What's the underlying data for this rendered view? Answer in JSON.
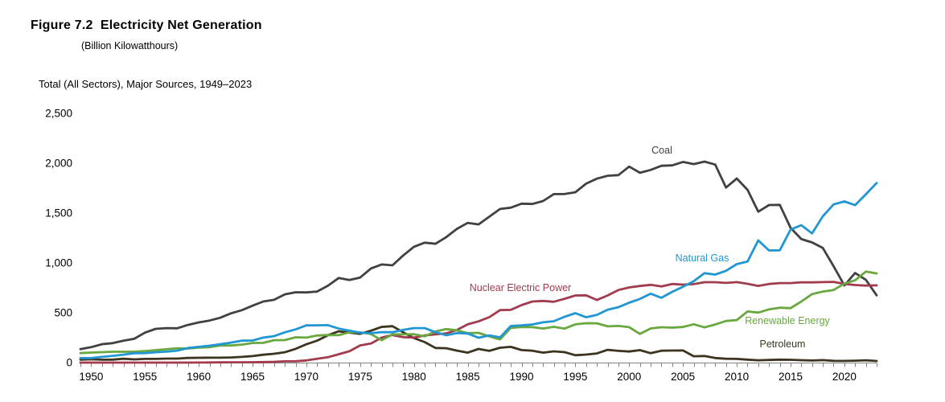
{
  "figure": {
    "title": "Figure 7.2  Electricity Net Generation",
    "units": "(Billion Kilowatthours)",
    "subtitle": "Total (All Sectors), Major Sources, 1949–2023"
  },
  "axis": {
    "y_ticks": [
      {
        "label": "0",
        "value": 0
      },
      {
        "label": "500",
        "value": 500
      },
      {
        "label": "1,000",
        "value": 1000
      },
      {
        "label": "1,500",
        "value": 1500
      },
      {
        "label": "2,000",
        "value": 2000
      },
      {
        "label": "2,500",
        "value": 2500
      }
    ],
    "x_tick_years": [
      1950,
      1955,
      1960,
      1965,
      1970,
      1975,
      1980,
      1985,
      1990,
      1995,
      2000,
      2005,
      2010,
      2015,
      2020
    ]
  },
  "chart_data": {
    "type": "line",
    "title": "Figure 7.2 Electricity Net Generation",
    "subtitle": "Total (All Sectors), Major Sources, 1949–2023",
    "xlabel": "",
    "ylabel": "Billion Kilowatthours",
    "xlim": [
      1949,
      2023
    ],
    "ylim": [
      0,
      2500
    ],
    "grid": false,
    "legend_position": "inline-labels",
    "x": [
      1949,
      1950,
      1951,
      1952,
      1953,
      1954,
      1955,
      1956,
      1957,
      1958,
      1959,
      1960,
      1961,
      1962,
      1963,
      1964,
      1965,
      1966,
      1967,
      1968,
      1969,
      1970,
      1971,
      1972,
      1973,
      1974,
      1975,
      1976,
      1977,
      1978,
      1979,
      1980,
      1981,
      1982,
      1983,
      1984,
      1985,
      1986,
      1987,
      1988,
      1989,
      1990,
      1991,
      1992,
      1993,
      1994,
      1995,
      1996,
      1997,
      1998,
      1999,
      2000,
      2001,
      2002,
      2003,
      2004,
      2005,
      2006,
      2007,
      2008,
      2009,
      2010,
      2011,
      2012,
      2013,
      2014,
      2015,
      2016,
      2017,
      2018,
      2019,
      2020,
      2021,
      2022,
      2023
    ],
    "series": [
      {
        "name": "Coal",
        "color": "#414042",
        "values": [
          135,
          155,
          185,
          195,
          219,
          239,
          301,
          339,
          346,
          344,
          378,
          403,
          422,
          450,
          494,
          526,
          571,
          613,
          630,
          685,
          706,
          704,
          713,
          771,
          848,
          828,
          853,
          944,
          985,
          976,
          1075,
          1162,
          1203,
          1192,
          1259,
          1342,
          1402,
          1386,
          1464,
          1541,
          1554,
          1594,
          1591,
          1621,
          1690,
          1691,
          1709,
          1795,
          1845,
          1874,
          1881,
          1966,
          1904,
          1933,
          1974,
          1978,
          2013,
          1991,
          2016,
          1986,
          1756,
          1847,
          1733,
          1514,
          1581,
          1582,
          1352,
          1239,
          1206,
          1150,
          966,
          774,
          898,
          831,
          675
        ]
      },
      {
        "name": "Natural Gas",
        "color": "#2096d3",
        "values": [
          45,
          45,
          57,
          68,
          80,
          94,
          95,
          104,
          110,
          120,
          147,
          158,
          169,
          184,
          201,
          220,
          222,
          251,
          265,
          304,
          333,
          373,
          374,
          376,
          341,
          320,
          300,
          295,
          306,
          305,
          329,
          346,
          346,
          305,
          274,
          297,
          292,
          249,
          273,
          253,
          367,
          373,
          382,
          404,
          415,
          460,
          496,
          455,
          479,
          531,
          556,
          601,
          639,
          691,
          650,
          710,
          761,
          816,
          897,
          883,
          921,
          988,
          1014,
          1226,
          1125,
          1127,
          1335,
          1378,
          1296,
          1468,
          1587,
          1617,
          1579,
          1689,
          1802
        ]
      },
      {
        "name": "Nuclear Electric Power",
        "color": "#a23b4e",
        "values": [
          0,
          0,
          0,
          0,
          0,
          0,
          0,
          0,
          0.1,
          0.2,
          0.2,
          0.5,
          1.7,
          2.3,
          3.2,
          3.3,
          3.7,
          5.5,
          7.7,
          12.5,
          13.9,
          21.8,
          38.1,
          54.1,
          83.5,
          114,
          172.5,
          191.1,
          250.9,
          276.4,
          255.2,
          251.1,
          272.7,
          282.8,
          293.7,
          327.6,
          383.7,
          414,
          455.3,
          527,
          529.4,
          576.9,
          612.6,
          618.8,
          610.3,
          640.4,
          673.4,
          674.7,
          628.6,
          673.7,
          728.3,
          753.9,
          768.8,
          780.1,
          763.7,
          788.5,
          782,
          787.2,
          806.4,
          806.2,
          798.9,
          807,
          790.2,
          769.3,
          789,
          797.2,
          797.2,
          805.7,
          805,
          807.1,
          809.4,
          789.9,
          778.2,
          772.2,
          775.3
        ]
      },
      {
        "name": "Renewable Energy",
        "color": "#69a73f",
        "values": [
          95,
          101,
          105,
          109,
          109,
          110,
          116,
          125,
          134,
          144,
          141,
          150,
          155,
          172,
          172,
          181,
          197,
          198,
          225,
          226,
          254,
          251,
          272,
          277,
          275,
          304,
          303,
          287,
          224,
          283,
          283,
          285,
          264,
          313,
          336,
          324,
          296,
          298,
          263,
          233,
          348,
          357,
          356,
          342,
          359,
          341,
          384,
          395,
          394,
          364,
          368,
          356,
          288,
          343,
          355,
          351,
          357,
          385,
          353,
          382,
          418,
          427,
          513,
          502,
          534,
          551,
          546,
          613,
          687,
          713,
          728,
          792,
          826,
          913,
          894
        ]
      },
      {
        "name": "Petroleum",
        "color": "#3d3420",
        "values": [
          30,
          34,
          29,
          30,
          39,
          32,
          37,
          37,
          40,
          40,
          47,
          48,
          49,
          49,
          52,
          57,
          65,
          79,
          89,
          104,
          138,
          184,
          220,
          274,
          314,
          301,
          289,
          320,
          358,
          365,
          304,
          246,
          206,
          147,
          144,
          120,
          100,
          137,
          118,
          149,
          158,
          126,
          119,
          100,
          113,
          105,
          74,
          81,
          92,
          128,
          118,
          111,
          125,
          94,
          119,
          121,
          122,
          64,
          66,
          46,
          39,
          37,
          30,
          23,
          27,
          30,
          28,
          24,
          21,
          25,
          18,
          17,
          19,
          23,
          16
        ]
      }
    ]
  }
}
